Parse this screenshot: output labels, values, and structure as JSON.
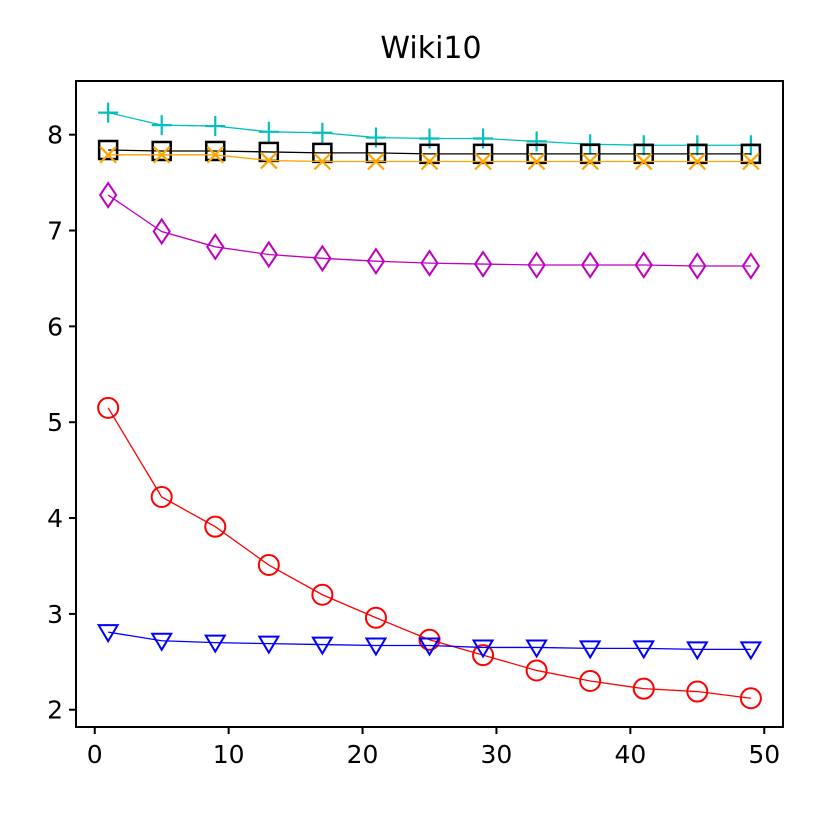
{
  "chart_data": {
    "type": "line",
    "title": "Wiki10",
    "xlabel": "",
    "ylabel": "",
    "xlim": [
      -1.4,
      51.4
    ],
    "ylim": [
      1.82,
      8.56
    ],
    "xticks": [
      0,
      10,
      20,
      30,
      40,
      50
    ],
    "yticks": [
      2,
      3,
      4,
      5,
      6,
      7,
      8
    ],
    "grid": false,
    "x": [
      1,
      5,
      9,
      13,
      17,
      21,
      25,
      29,
      33,
      37,
      41,
      45,
      49
    ],
    "series": [
      {
        "name": "cyan-plus",
        "color": "#00bfbf",
        "marker": "plus",
        "values": [
          8.23,
          8.1,
          8.09,
          8.03,
          8.02,
          7.97,
          7.96,
          7.96,
          7.93,
          7.9,
          7.89,
          7.89,
          7.89
        ]
      },
      {
        "name": "black-square",
        "color": "#000000",
        "marker": "square",
        "values": [
          7.84,
          7.83,
          7.83,
          7.82,
          7.81,
          7.81,
          7.8,
          7.8,
          7.8,
          7.8,
          7.8,
          7.8,
          7.8
        ]
      },
      {
        "name": "orange-x",
        "color": "#ffa500",
        "marker": "x",
        "values": [
          7.79,
          7.79,
          7.79,
          7.73,
          7.72,
          7.72,
          7.72,
          7.72,
          7.72,
          7.72,
          7.72,
          7.72,
          7.72
        ]
      },
      {
        "name": "magenta-diamond",
        "color": "#bf00bf",
        "marker": "diamond",
        "values": [
          7.37,
          6.99,
          6.83,
          6.75,
          6.71,
          6.68,
          6.66,
          6.65,
          6.64,
          6.64,
          6.64,
          6.63,
          6.63
        ]
      },
      {
        "name": "red-circle",
        "color": "#ff0000",
        "marker": "circle",
        "values": [
          5.15,
          4.22,
          3.91,
          3.51,
          3.2,
          2.96,
          2.73,
          2.57,
          2.41,
          2.3,
          2.22,
          2.19,
          2.12
        ]
      },
      {
        "name": "blue-triangle",
        "color": "#0000ff",
        "marker": "triangle-down",
        "values": [
          2.81,
          2.72,
          2.7,
          2.69,
          2.68,
          2.67,
          2.67,
          2.65,
          2.65,
          2.64,
          2.64,
          2.63,
          2.63
        ]
      }
    ]
  }
}
